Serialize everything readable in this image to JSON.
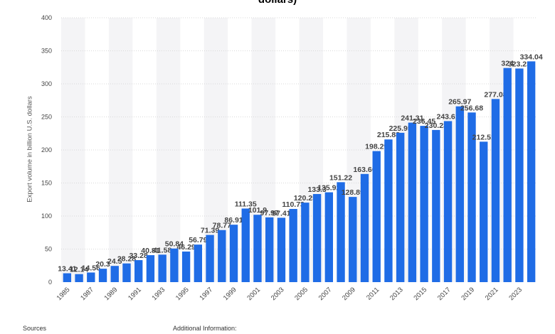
{
  "chart_data": {
    "type": "bar",
    "title": "dollars)",
    "ylabel": "Export volume in billion U.S. dollars",
    "ylim": [
      0,
      400
    ],
    "yticks": [
      0,
      50,
      100,
      150,
      200,
      250,
      300,
      350,
      400
    ],
    "grid": true,
    "bar_color": "#1f6ce6",
    "categories": [
      "1985",
      "1986",
      "1987",
      "1988",
      "1989",
      "1990",
      "1991",
      "1992",
      "1993",
      "1994",
      "1995",
      "1996",
      "1997",
      "1998",
      "1999",
      "2000",
      "2001",
      "2002",
      "2003",
      "2004",
      "2005",
      "2006",
      "2007",
      "2008",
      "2009",
      "2010",
      "2011",
      "2012",
      "2013",
      "2014",
      "2015",
      "2016",
      "2017",
      "2018",
      "2019",
      "2020",
      "2021",
      "2022",
      "2023",
      "2024"
    ],
    "xtick_labels": [
      "1985",
      "",
      "1987",
      "",
      "1989",
      "",
      "1991",
      "",
      "1993",
      "",
      "1995",
      "",
      "1997",
      "",
      "1999",
      "",
      "2001",
      "",
      "2003",
      "",
      "2005",
      "",
      "2007",
      "",
      "2009",
      "",
      "2011",
      "",
      "2013",
      "",
      "2015",
      "",
      "2017",
      "",
      "2019",
      "",
      "2021",
      "",
      "2023",
      ""
    ],
    "values": [
      13.41,
      12.14,
      14.56,
      20.3,
      24.5,
      28.28,
      33.28,
      40.81,
      41.58,
      50.84,
      46.29,
      56.79,
      71.39,
      78.77,
      86.91,
      111.35,
      101.9,
      97.97,
      97.41,
      110.73,
      120.25,
      133.3,
      135.92,
      151.22,
      128.89,
      163.66,
      198.29,
      215.88,
      225.95,
      241.31,
      236.45,
      230.23,
      243.61,
      265.97,
      256.68,
      212.51,
      277.08,
      324.0,
      323.23,
      334.04
    ],
    "data_labels": [
      "13.41",
      "12.14",
      "14.56",
      "20.3",
      "24.5",
      "28.28",
      "33.28",
      "40.81",
      "41.58",
      "50.84",
      "46.29",
      "56.79",
      "71.39",
      "78.77",
      "86.91",
      "111.35",
      "101.9",
      "97.97",
      "97.41",
      "110.73",
      "120.25",
      "133.3",
      "135.92",
      "151.22",
      "128.89",
      "163.66",
      "198.29",
      "215.88",
      "225.95",
      "241.31",
      "236.45",
      "230.23",
      "243.61",
      "265.97",
      "256.68",
      "212.51",
      "277.08",
      "324",
      "323.23",
      "334.04"
    ]
  },
  "footer": {
    "sources": "Sources",
    "additional_info": "Additional Information:"
  }
}
